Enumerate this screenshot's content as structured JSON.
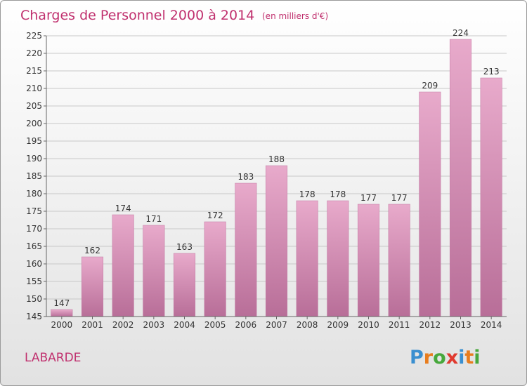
{
  "header": {
    "title": "Charges de Personnel 2000 à 2014",
    "subtitle": "(en milliers d'€)"
  },
  "footer": {
    "place": "LABARDE",
    "logo": "Proxiti",
    "logo_colors": [
      "#3a8fd0",
      "#e87d1e",
      "#47a83c",
      "#e03a2f",
      "#3a8fd0",
      "#e87d1e",
      "#47a83c"
    ]
  },
  "chart_data": {
    "type": "bar",
    "title": "Charges de Personnel 2000 à 2014",
    "subtitle": "(en milliers d'€)",
    "xlabel": "",
    "ylabel": "",
    "categories": [
      "2000",
      "2001",
      "2002",
      "2003",
      "2004",
      "2005",
      "2006",
      "2007",
      "2008",
      "2009",
      "2010",
      "2011",
      "2012",
      "2013",
      "2014"
    ],
    "values": [
      147,
      162,
      174,
      171,
      163,
      172,
      183,
      188,
      178,
      178,
      177,
      177,
      209,
      224,
      213
    ],
    "ylim": [
      145,
      225
    ],
    "yticks": [
      145,
      150,
      155,
      160,
      165,
      170,
      175,
      180,
      185,
      190,
      195,
      200,
      205,
      210,
      215,
      220,
      225
    ],
    "grid": true,
    "legend": "none",
    "bar_color": "#d889b1",
    "bar_color_light": "#e8aacb",
    "bar_color_dark": "#b86e98"
  }
}
